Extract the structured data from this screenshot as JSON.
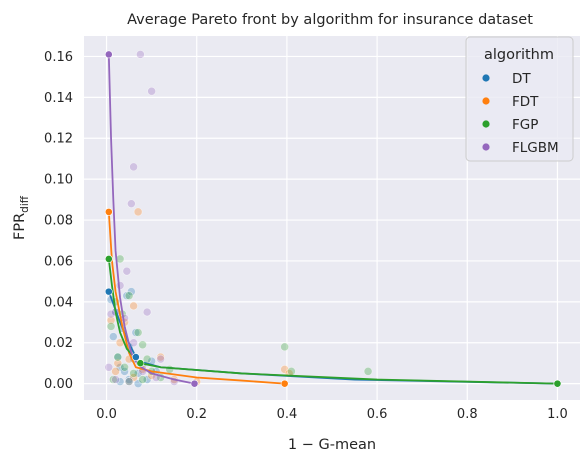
{
  "chart_data": {
    "type": "scatter",
    "title": "Average Pareto front by algorithm for insurance dataset",
    "xlabel": "1 − G-mean",
    "ylabel": "FPR",
    "ylabel_sub": "diff",
    "xlim": [
      -0.05,
      1.05
    ],
    "ylim": [
      -0.008,
      0.17
    ],
    "xticks": [
      0.0,
      0.2,
      0.4,
      0.6,
      0.8,
      1.0
    ],
    "xtick_labels": [
      "0.0",
      "0.2",
      "0.4",
      "0.6",
      "0.8",
      "1.0"
    ],
    "yticks": [
      0.0,
      0.02,
      0.04,
      0.06,
      0.08,
      0.1,
      0.12,
      0.14,
      0.16
    ],
    "ytick_labels": [
      "0.00",
      "0.02",
      "0.04",
      "0.06",
      "0.08",
      "0.10",
      "0.12",
      "0.14",
      "0.16"
    ],
    "grid": true,
    "legend": {
      "title": "algorithm",
      "placement": "top-right"
    },
    "series": [
      {
        "name": "DT",
        "color": "#1f77b4",
        "front": [
          [
            0.005,
            0.045
          ],
          [
            0.03,
            0.03
          ],
          [
            0.045,
            0.022
          ],
          [
            0.065,
            0.013
          ],
          [
            0.07,
            0.011
          ],
          [
            0.12,
            0.008
          ],
          [
            0.3,
            0.005
          ],
          [
            0.55,
            0.002
          ],
          [
            1.0,
            0.0
          ]
        ],
        "front_markers": [
          [
            0.005,
            0.045
          ],
          [
            0.065,
            0.013
          ],
          [
            1.0,
            0.0
          ]
        ],
        "cloud": [
          [
            0.01,
            0.041
          ],
          [
            0.015,
            0.023
          ],
          [
            0.02,
            0.035
          ],
          [
            0.025,
            0.013
          ],
          [
            0.03,
            0.008
          ],
          [
            0.035,
            0.027
          ],
          [
            0.04,
            0.006
          ],
          [
            0.045,
            0.043
          ],
          [
            0.05,
            0.018
          ],
          [
            0.055,
            0.045
          ],
          [
            0.06,
            0.012
          ],
          [
            0.065,
            0.025
          ],
          [
            0.07,
            0.005
          ],
          [
            0.08,
            0.009
          ],
          [
            0.09,
            0.002
          ],
          [
            0.1,
            0.011
          ],
          [
            0.03,
            0.001
          ],
          [
            0.05,
            0.002
          ],
          [
            0.07,
            0.0
          ],
          [
            0.11,
            0.006
          ]
        ]
      },
      {
        "name": "FDT",
        "color": "#ff7f0e",
        "front": [
          [
            0.005,
            0.084
          ],
          [
            0.012,
            0.06
          ],
          [
            0.02,
            0.045
          ],
          [
            0.035,
            0.028
          ],
          [
            0.05,
            0.015
          ],
          [
            0.065,
            0.008
          ],
          [
            0.1,
            0.006
          ],
          [
            0.2,
            0.003
          ],
          [
            0.3,
            0.0015
          ],
          [
            0.395,
            0.0
          ]
        ],
        "front_markers": [
          [
            0.005,
            0.084
          ],
          [
            0.395,
            0.0
          ]
        ],
        "cloud": [
          [
            0.07,
            0.084
          ],
          [
            0.06,
            0.038
          ],
          [
            0.04,
            0.03
          ],
          [
            0.03,
            0.02
          ],
          [
            0.02,
            0.006
          ],
          [
            0.05,
            0.012
          ],
          [
            0.08,
            0.007
          ],
          [
            0.12,
            0.013
          ],
          [
            0.15,
            0.002
          ],
          [
            0.2,
            0.001
          ],
          [
            0.395,
            0.007
          ],
          [
            0.405,
            0.005
          ],
          [
            0.01,
            0.031
          ],
          [
            0.025,
            0.01
          ],
          [
            0.06,
            0.003
          ],
          [
            0.1,
            0.004
          ]
        ]
      },
      {
        "name": "FGP",
        "color": "#2ca02c",
        "front": [
          [
            0.005,
            0.061
          ],
          [
            0.012,
            0.048
          ],
          [
            0.02,
            0.035
          ],
          [
            0.03,
            0.025
          ],
          [
            0.045,
            0.017
          ],
          [
            0.065,
            0.012
          ],
          [
            0.075,
            0.01
          ],
          [
            0.12,
            0.008
          ],
          [
            0.3,
            0.005
          ],
          [
            0.6,
            0.002
          ],
          [
            1.0,
            0.0
          ]
        ],
        "front_markers": [
          [
            0.005,
            0.061
          ],
          [
            0.075,
            0.01
          ],
          [
            1.0,
            0.0
          ]
        ],
        "cloud": [
          [
            0.01,
            0.028
          ],
          [
            0.02,
            0.04
          ],
          [
            0.025,
            0.013
          ],
          [
            0.03,
            0.061
          ],
          [
            0.035,
            0.034
          ],
          [
            0.04,
            0.008
          ],
          [
            0.05,
            0.043
          ],
          [
            0.06,
            0.005
          ],
          [
            0.07,
            0.025
          ],
          [
            0.08,
            0.019
          ],
          [
            0.09,
            0.012
          ],
          [
            0.1,
            0.006
          ],
          [
            0.12,
            0.003
          ],
          [
            0.14,
            0.007
          ],
          [
            0.395,
            0.018
          ],
          [
            0.58,
            0.006
          ],
          [
            0.41,
            0.006
          ],
          [
            0.015,
            0.002
          ],
          [
            0.05,
            0.001
          ],
          [
            0.08,
            0.002
          ]
        ]
      },
      {
        "name": "FLGBM",
        "color": "#9467bd",
        "front": [
          [
            0.005,
            0.161
          ],
          [
            0.01,
            0.12
          ],
          [
            0.015,
            0.09
          ],
          [
            0.02,
            0.065
          ],
          [
            0.03,
            0.042
          ],
          [
            0.04,
            0.028
          ],
          [
            0.055,
            0.015
          ],
          [
            0.07,
            0.009
          ],
          [
            0.1,
            0.005
          ],
          [
            0.15,
            0.002
          ],
          [
            0.195,
            0.0
          ]
        ],
        "front_markers": [
          [
            0.005,
            0.161
          ],
          [
            0.195,
            0.0
          ]
        ],
        "cloud": [
          [
            0.075,
            0.161
          ],
          [
            0.1,
            0.143
          ],
          [
            0.06,
            0.106
          ],
          [
            0.055,
            0.088
          ],
          [
            0.045,
            0.055
          ],
          [
            0.03,
            0.048
          ],
          [
            0.02,
            0.035
          ],
          [
            0.01,
            0.034
          ],
          [
            0.04,
            0.032
          ],
          [
            0.06,
            0.02
          ],
          [
            0.09,
            0.035
          ],
          [
            0.12,
            0.012
          ],
          [
            0.005,
            0.008
          ],
          [
            0.02,
            0.002
          ],
          [
            0.05,
            0.001
          ],
          [
            0.08,
            0.006
          ],
          [
            0.11,
            0.003
          ],
          [
            0.15,
            0.001
          ]
        ]
      }
    ]
  }
}
